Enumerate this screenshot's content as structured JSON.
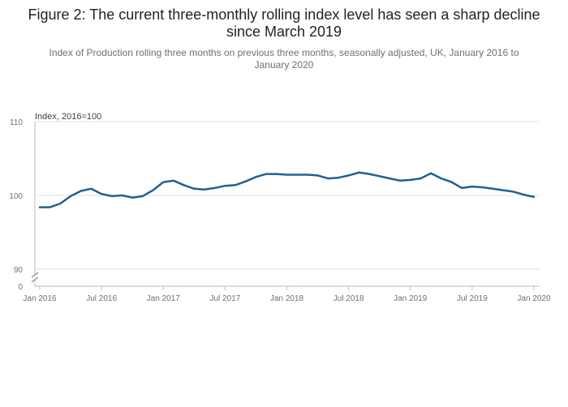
{
  "chart_data": {
    "type": "line",
    "title": "Figure 2: The current three-monthly rolling index level has seen a sharp decline since March 2019",
    "subtitle": "Index of Production rolling three months on previous three months, seasonally adjusted, UK, January 2016 to January 2020",
    "ylabel": "Index, 2016=100",
    "xlabel": "",
    "ylim": [
      90,
      110
    ],
    "y_broken_axis_zero": "0",
    "y_ticks": [
      "110",
      "100",
      "90"
    ],
    "x_tick_labels": [
      "Jan 2016",
      "Jul 2016",
      "Jan 2017",
      "Jul 2017",
      "Jan 2018",
      "Jul 2018",
      "Jan 2019",
      "Jul 2019",
      "Jan 2020"
    ],
    "series": [
      {
        "name": "Index of Production",
        "color": "#206095",
        "x": [
          "Jan 2016",
          "Feb 2016",
          "Mar 2016",
          "Apr 2016",
          "May 2016",
          "Jun 2016",
          "Jul 2016",
          "Aug 2016",
          "Sep 2016",
          "Oct 2016",
          "Nov 2016",
          "Dec 2016",
          "Jan 2017",
          "Feb 2017",
          "Mar 2017",
          "Apr 2017",
          "May 2017",
          "Jun 2017",
          "Jul 2017",
          "Aug 2017",
          "Sep 2017",
          "Oct 2017",
          "Nov 2017",
          "Dec 2017",
          "Jan 2018",
          "Feb 2018",
          "Mar 2018",
          "Apr 2018",
          "May 2018",
          "Jun 2018",
          "Jul 2018",
          "Aug 2018",
          "Sep 2018",
          "Oct 2018",
          "Nov 2018",
          "Dec 2018",
          "Jan 2019",
          "Feb 2019",
          "Mar 2019",
          "Apr 2019",
          "May 2019",
          "Jun 2019",
          "Jul 2019",
          "Aug 2019",
          "Sep 2019",
          "Oct 2019",
          "Nov 2019",
          "Dec 2019",
          "Jan 2020"
        ],
        "values": [
          98.4,
          98.4,
          98.9,
          99.9,
          100.6,
          100.9,
          100.2,
          99.9,
          100.0,
          99.7,
          99.9,
          100.7,
          101.8,
          102.0,
          101.4,
          100.9,
          100.8,
          101.0,
          101.3,
          101.4,
          101.9,
          102.5,
          102.9,
          102.9,
          102.8,
          102.8,
          102.8,
          102.7,
          102.3,
          102.4,
          102.7,
          103.1,
          102.9,
          102.6,
          102.3,
          102.0,
          102.1,
          102.3,
          103.0,
          102.3,
          101.8,
          101.0,
          101.2,
          101.1,
          100.9,
          100.7,
          100.5,
          100.1,
          99.8
        ]
      }
    ]
  }
}
